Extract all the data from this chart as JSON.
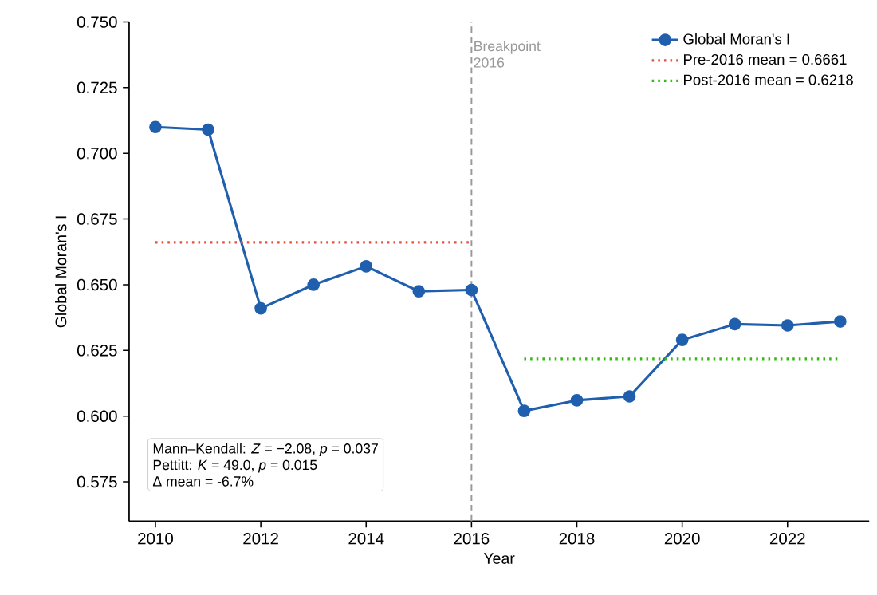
{
  "chart_data": {
    "type": "line",
    "xlabel": "Year",
    "ylabel": "Global Moran's I",
    "x": [
      2010,
      2011,
      2012,
      2013,
      2014,
      2015,
      2016,
      2017,
      2018,
      2019,
      2020,
      2021,
      2022,
      2023
    ],
    "series": [
      {
        "name": "Global Moran's I",
        "color": "#1f5fad",
        "marker": "circle",
        "line_style": "solid",
        "values": [
          0.71,
          0.709,
          0.641,
          0.65,
          0.657,
          0.6475,
          0.648,
          0.602,
          0.606,
          0.6075,
          0.629,
          0.635,
          0.6345,
          0.636
        ]
      },
      {
        "name": "Pre-2016 mean = 0.6661",
        "color": "#e8503c",
        "marker": "none",
        "line_style": "dotted",
        "x": [
          2010,
          2016
        ],
        "values": [
          0.6661,
          0.6661
        ]
      },
      {
        "name": "Post-2016 mean = 0.6218",
        "color": "#33bb11",
        "marker": "none",
        "line_style": "dotted",
        "x": [
          2017,
          2023
        ],
        "values": [
          0.6218,
          0.6218
        ]
      }
    ],
    "xlim": [
      2009.5,
      2023.55
    ],
    "ylim": [
      0.56,
      0.75
    ],
    "xticks": [
      2010,
      2012,
      2014,
      2016,
      2018,
      2020,
      2022
    ],
    "yticks": [
      {
        "value": 0.575,
        "label": "0.575"
      },
      {
        "value": 0.6,
        "label": "0.600"
      },
      {
        "value": 0.625,
        "label": "0.625"
      },
      {
        "value": 0.65,
        "label": "0.650"
      },
      {
        "value": 0.675,
        "label": "0.675"
      },
      {
        "value": 0.7,
        "label": "0.700"
      },
      {
        "value": 0.725,
        "label": "0.725"
      },
      {
        "value": 0.75,
        "label": "0.750"
      }
    ],
    "ref_lines": [
      {
        "axis": "x",
        "value": 2016,
        "label": "Breakpoint 2016",
        "color": "#999999",
        "line_style": "dashed"
      }
    ],
    "annotations": [
      "Mann–Kendall: *Z* = −2.08, *p* = 0.037",
      "Pettitt: *K* = 49.0, *p* = 0.015",
      "Δ mean = -6.7%"
    ],
    "grid": false,
    "legend": "top right"
  }
}
